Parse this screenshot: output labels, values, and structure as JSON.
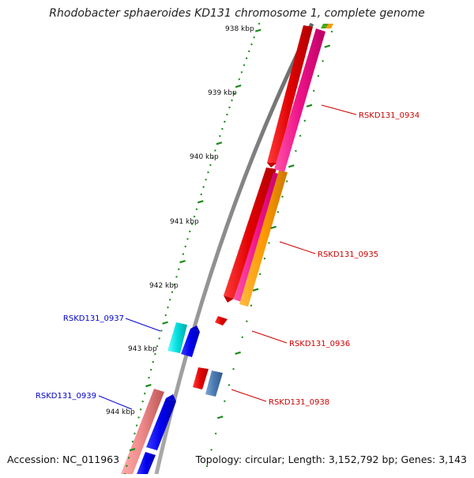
{
  "title": "Rhodobacter sphaeroides KD131 chromosome 1, complete genome",
  "accession": "Accession: NC_011963",
  "summary": "Topology: circular; Length: 3,152,792 bp; Genes: 3,143",
  "ruler": [
    "938 kbp",
    "939 kbp",
    "940 kbp",
    "941 kbp",
    "942 kbp",
    "943 kbp",
    "944 kbp"
  ],
  "genes": [
    {
      "name": "RSKD131_0934",
      "color": "#cc0000"
    },
    {
      "name": "RSKD131_0935",
      "color": "#cc0000"
    },
    {
      "name": "RSKD131_0936",
      "color": "#cc0000"
    },
    {
      "name": "RSKD131_0937",
      "color": "#0000cc"
    },
    {
      "name": "RSKD131_0938",
      "color": "#cc0000"
    },
    {
      "name": "RSKD131_0939",
      "color": "#0000cc"
    }
  ],
  "colors": {
    "backbone": "#888888",
    "ruler": "#1a8a1a",
    "forward_gene": "#ee0000",
    "pink_gene": "#ee1188",
    "orange_gene": "#ff9900",
    "reverse_gene": "#0000ee",
    "cyan_gene": "#00dddd",
    "salmon_gene": "#ee8888",
    "steel_gene": "#4a7ab0",
    "label_forward": "#cc0000",
    "label_reverse": "#0000cc"
  }
}
